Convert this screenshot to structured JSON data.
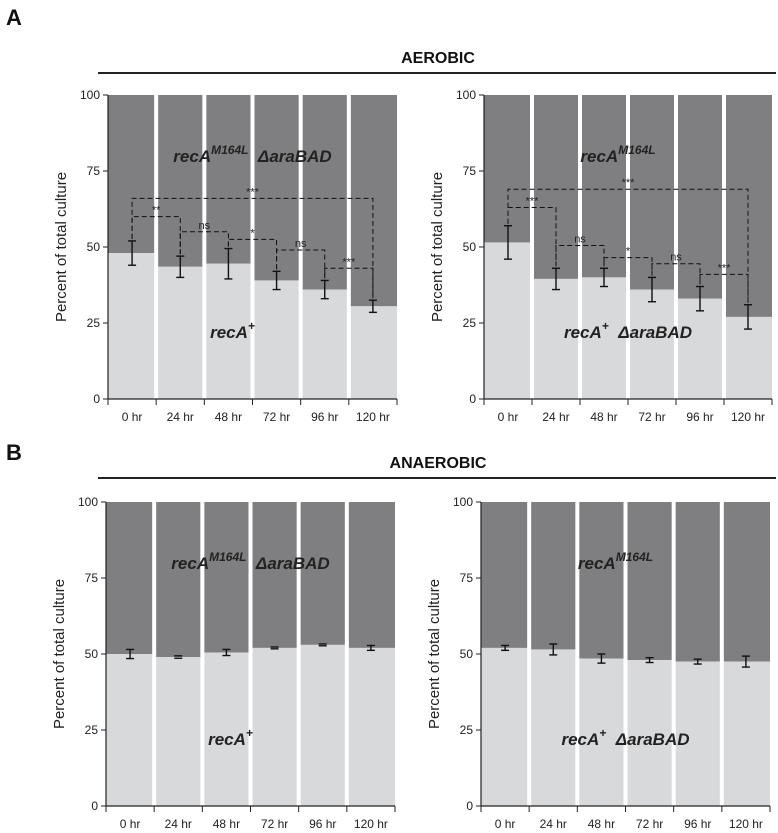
{
  "panels": [
    {
      "letter": "A",
      "title": "AEROBIC"
    },
    {
      "letter": "B",
      "title": "ANAEROBIC"
    }
  ],
  "colors": {
    "top": "#7f7f81",
    "bottom": "#d8d9db",
    "axis": "#222222"
  },
  "chart_data": [
    {
      "type": "bar",
      "stacked": true,
      "panel": "A",
      "condition": "AEROBIC",
      "categories": [
        "0 hr",
        "24 hr",
        "48 hr",
        "72 hr",
        "96 hr",
        "120 hr"
      ],
      "ylabel": "Percent of total culture",
      "ylim": [
        0,
        100
      ],
      "yticks": [
        0,
        25,
        50,
        75,
        100
      ],
      "series": [
        {
          "name": "recA+",
          "values": [
            48,
            43.5,
            44.5,
            39,
            36,
            30.5
          ],
          "errors": [
            4,
            3.5,
            5,
            3,
            3,
            2
          ]
        },
        {
          "name": "recA M164L ΔaraBAD",
          "values": [
            52,
            56.5,
            55.5,
            61,
            64,
            69.5
          ]
        }
      ],
      "labels": {
        "top_main": "recA",
        "top_sup": "M164L",
        "top_suffix": "ΔaraBAD",
        "bottom_main": "recA",
        "bottom_sup": "+",
        "bottom_suffix": ""
      },
      "brackets": [
        {
          "from": 0,
          "to": 1,
          "y": 60,
          "label": "**"
        },
        {
          "from": 1,
          "to": 2,
          "y": 55,
          "label": "ns"
        },
        {
          "from": 2,
          "to": 3,
          "y": 52.5,
          "label": "*"
        },
        {
          "from": 3,
          "to": 4,
          "y": 49,
          "label": "ns"
        },
        {
          "from": 4,
          "to": 5,
          "y": 43,
          "label": "***"
        },
        {
          "from": 0,
          "to": 5,
          "y": 66,
          "label": "***"
        }
      ]
    },
    {
      "type": "bar",
      "stacked": true,
      "panel": "A",
      "condition": "AEROBIC",
      "categories": [
        "0 hr",
        "24 hr",
        "48 hr",
        "72 hr",
        "96 hr",
        "120 hr"
      ],
      "ylabel": "Percent of total culture",
      "ylim": [
        0,
        100
      ],
      "yticks": [
        0,
        25,
        50,
        75,
        100
      ],
      "series": [
        {
          "name": "recA+ ΔaraBAD",
          "values": [
            51.5,
            39.5,
            40,
            36,
            33,
            27
          ],
          "errors": [
            5.5,
            3.5,
            3,
            4,
            4,
            4
          ]
        },
        {
          "name": "recA M164L",
          "values": [
            48.5,
            60.5,
            60,
            64,
            67,
            73
          ]
        }
      ],
      "labels": {
        "top_main": "recA",
        "top_sup": "M164L",
        "top_suffix": "",
        "bottom_main": "recA",
        "bottom_sup": "+",
        "bottom_suffix": "ΔaraBAD"
      },
      "brackets": [
        {
          "from": 0,
          "to": 1,
          "y": 63,
          "label": "***"
        },
        {
          "from": 1,
          "to": 2,
          "y": 50.5,
          "label": "ns"
        },
        {
          "from": 2,
          "to": 3,
          "y": 46.5,
          "label": "*"
        },
        {
          "from": 3,
          "to": 4,
          "y": 44.5,
          "label": "ns"
        },
        {
          "from": 4,
          "to": 5,
          "y": 41,
          "label": "***"
        },
        {
          "from": 0,
          "to": 5,
          "y": 69,
          "label": "***"
        }
      ]
    },
    {
      "type": "bar",
      "stacked": true,
      "panel": "B",
      "condition": "ANAEROBIC",
      "categories": [
        "0 hr",
        "24 hr",
        "48 hr",
        "72 hr",
        "96 hr",
        "120 hr"
      ],
      "ylabel": "Percent of total culture",
      "ylim": [
        0,
        100
      ],
      "yticks": [
        0,
        25,
        50,
        75,
        100
      ],
      "series": [
        {
          "name": "recA+",
          "values": [
            50,
            49,
            50.5,
            52,
            53,
            52
          ],
          "errors": [
            1.5,
            0.4,
            1,
            0.3,
            0.3,
            0.8
          ]
        },
        {
          "name": "recA M164L ΔaraBAD",
          "values": [
            50,
            51,
            49.5,
            48,
            47,
            48
          ]
        }
      ],
      "labels": {
        "top_main": "recA",
        "top_sup": "M164L",
        "top_suffix": "ΔaraBAD",
        "bottom_main": "recA",
        "bottom_sup": "+",
        "bottom_suffix": ""
      },
      "brackets": []
    },
    {
      "type": "bar",
      "stacked": true,
      "panel": "B",
      "condition": "ANAEROBIC",
      "categories": [
        "0 hr",
        "24 hr",
        "48 hr",
        "72 hr",
        "96 hr",
        "120 hr"
      ],
      "ylabel": "Percent of total culture",
      "ylim": [
        0,
        100
      ],
      "yticks": [
        0,
        25,
        50,
        75,
        100
      ],
      "series": [
        {
          "name": "recA+ ΔaraBAD",
          "values": [
            52,
            51.5,
            48.5,
            48,
            47.5,
            47.5
          ],
          "errors": [
            0.8,
            1.8,
            1.5,
            0.8,
            0.8,
            1.8
          ]
        },
        {
          "name": "recA M164L",
          "values": [
            48,
            48.5,
            51.5,
            52,
            52.5,
            52.5
          ]
        }
      ],
      "labels": {
        "top_main": "recA",
        "top_sup": "M164L",
        "top_suffix": "",
        "bottom_main": "recA",
        "bottom_sup": "+",
        "bottom_suffix": "ΔaraBAD"
      },
      "brackets": []
    }
  ]
}
